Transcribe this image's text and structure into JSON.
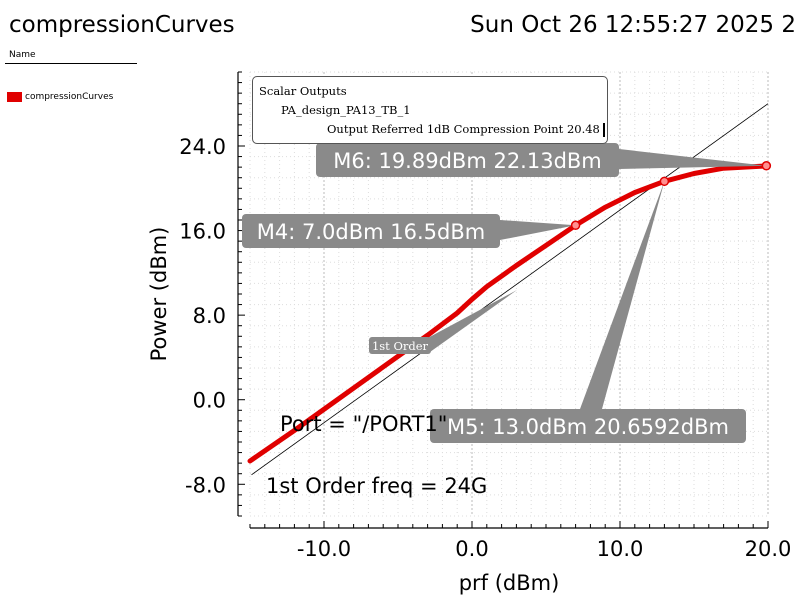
{
  "window": {
    "title": "compressionCurves",
    "timestamp": "Sun Oct 26 12:55:27 2025",
    "page_number": "2"
  },
  "legend": {
    "header": "Name",
    "entries": [
      {
        "label": "compressionCurves",
        "color": "#e00000"
      }
    ]
  },
  "scalar_outputs": {
    "heading": "Scalar Outputs",
    "design": "PA_design_PA13_TB_1",
    "line": "Output Referred 1dB Compression Point 20.48"
  },
  "chart_data": {
    "type": "line",
    "xlabel": "prf (dBm)",
    "ylabel": "Power (dBm)",
    "xlim": [
      -15,
      20
    ],
    "ylim": [
      -11,
      31
    ],
    "x_ticks": [
      -10,
      0,
      10,
      20
    ],
    "x_tick_labels": [
      "-10.0",
      "0.0",
      "10.0",
      "20.0"
    ],
    "y_ticks": [
      -8,
      0,
      8,
      16,
      24
    ],
    "y_tick_labels": [
      "-8.0",
      "0.0",
      "8.0",
      "16.0",
      "24.0"
    ],
    "grid": true,
    "series": [
      {
        "name": "compressionCurves",
        "color": "#e00000",
        "x": [
          -15,
          -12,
          -9,
          -6,
          -3,
          -1,
          0,
          1,
          3,
          5,
          7,
          9,
          11,
          13,
          15,
          17,
          20
        ],
        "y": [
          -5.8,
          -2.9,
          0.1,
          3.1,
          6.1,
          8.2,
          9.5,
          10.7,
          12.7,
          14.6,
          16.5,
          18.2,
          19.6,
          20.66,
          21.4,
          21.9,
          22.13
        ]
      },
      {
        "color": "#000000",
        "x": [
          -14.9,
          20
        ],
        "y": [
          -7.1,
          28.0
        ]
      }
    ],
    "markers": [
      {
        "label": "M4: 7.0dBm 16.5dBm",
        "x": 7.0,
        "y": 16.5
      },
      {
        "label": "M5: 13.0dBm 20.6592dBm",
        "x": 13.0,
        "y": 20.6592
      },
      {
        "label": "M6: 19.89dBm 22.13dBm",
        "x": 19.89,
        "y": 22.13
      }
    ],
    "annotations": {
      "first_order_tag": "1st Order",
      "port": "Port = \"/PORT1\"",
      "first_order_freq": "1st Order freq = 24G"
    }
  }
}
